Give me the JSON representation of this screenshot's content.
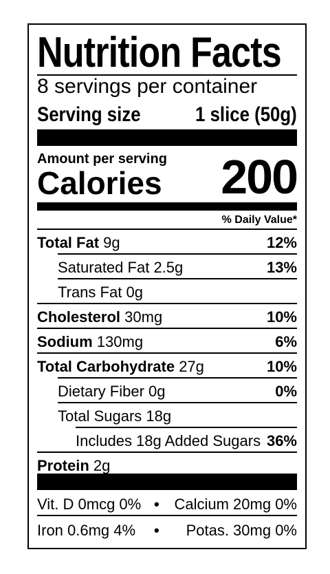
{
  "label": {
    "title": "Nutrition Facts",
    "servings_per_container": "8 servings per container",
    "serving_size_label": "Serving size",
    "serving_size_value": "1 slice (50g)",
    "amount_per_serving": "Amount per serving",
    "calories_label": "Calories",
    "calories_value": "200",
    "daily_value_header": "% Daily Value*",
    "nutrients": [
      {
        "name": "Total Fat",
        "amount": "9g",
        "percent": "12%"
      },
      {
        "name": "Saturated Fat",
        "amount": "2.5g",
        "percent": "13%"
      },
      {
        "name": "Trans Fat",
        "amount": "0g",
        "percent": ""
      },
      {
        "name": "Cholesterol",
        "amount": "30mg",
        "percent": "10%"
      },
      {
        "name": "Sodium",
        "amount": "130mg",
        "percent": "6%"
      },
      {
        "name": "Total Carbohydrate",
        "amount": "27g",
        "percent": "10%"
      },
      {
        "name": "Dietary Fiber",
        "amount": "0g",
        "percent": "0%"
      },
      {
        "name": "Total Sugars",
        "amount": "18g",
        "percent": ""
      },
      {
        "name": "Includes 18g Added Sugars",
        "amount": "",
        "percent": "36%"
      },
      {
        "name": "Protein",
        "amount": "2g",
        "percent": ""
      }
    ],
    "vitamins": [
      {
        "left": "Vit. D 0mcg 0%",
        "separator": "•",
        "right": "Calcium 20mg 0%"
      },
      {
        "left": "Iron 0.6mg 4%",
        "separator": "•",
        "right": "Potas. 30mg 0%"
      }
    ]
  }
}
